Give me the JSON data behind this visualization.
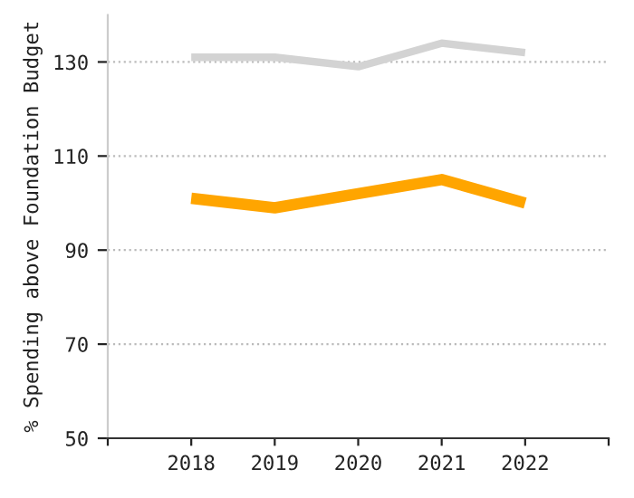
{
  "chart_data": {
    "type": "line",
    "ylabel": "% Spending above Foundation Budget",
    "x": [
      2018,
      2019,
      2020,
      2021,
      2022
    ],
    "series": [
      {
        "color": "#d3d3d3",
        "values": [
          131,
          131,
          129,
          134,
          132
        ]
      },
      {
        "color": "#ffa500",
        "values": [
          101,
          99,
          102,
          105,
          100
        ]
      }
    ],
    "xlim": [
      2017,
      2023
    ],
    "xticks": [
      {
        "value": 2017,
        "label": null
      },
      2018,
      2019,
      2020,
      2021,
      2022,
      {
        "value": 2023,
        "label": null
      }
    ],
    "ylim": [
      50,
      140
    ],
    "yticks": [
      50,
      70,
      90,
      110,
      130
    ],
    "grid": "y",
    "marker": "none",
    "line_style": "solid",
    "legend": false
  }
}
